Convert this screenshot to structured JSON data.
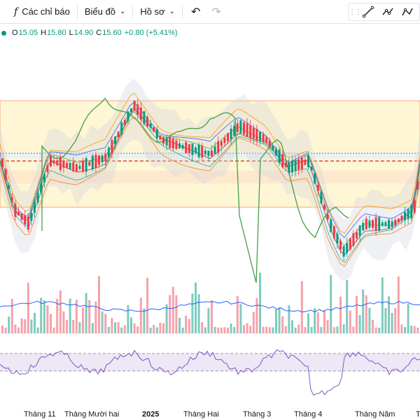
{
  "toolbar": {
    "indicators_label": "Các chỉ báo",
    "chart_type_label": "Biểu đồ",
    "profile_label": "Hồ sơ",
    "fx_glyph": "f",
    "undo_icon": "undo-icon",
    "redo_icon": "redo-icon"
  },
  "drawing_tools": [
    "trend-line-icon",
    "path-icon",
    "polyline-icon",
    "arrow-line-icon"
  ],
  "legend": {
    "open_label": "O",
    "open": "15.05",
    "high_label": "H",
    "high": "15.80",
    "low_label": "L",
    "low": "14.90",
    "close_label": "C",
    "close": "15.60",
    "change": "+0.80 (+5.41%)",
    "up_color": "#089981"
  },
  "time_axis": [
    "Tháng 11",
    "Tháng Mười hai",
    "2025",
    "Tháng Hai",
    "Tháng 3",
    "Tháng 4",
    "Tháng Năm",
    "T"
  ],
  "colors": {
    "up": "#089981",
    "down": "#f23645",
    "up_volume": "#7fcbbf",
    "down_volume": "#f7a1a8",
    "rsi_line": "#7e57c2",
    "rsi_band": "#ede7f6",
    "zone_fill": "#fff6d6",
    "zone_border": "#f7a57a",
    "ichimoku_cloud": "#d1d4dc"
  }
}
